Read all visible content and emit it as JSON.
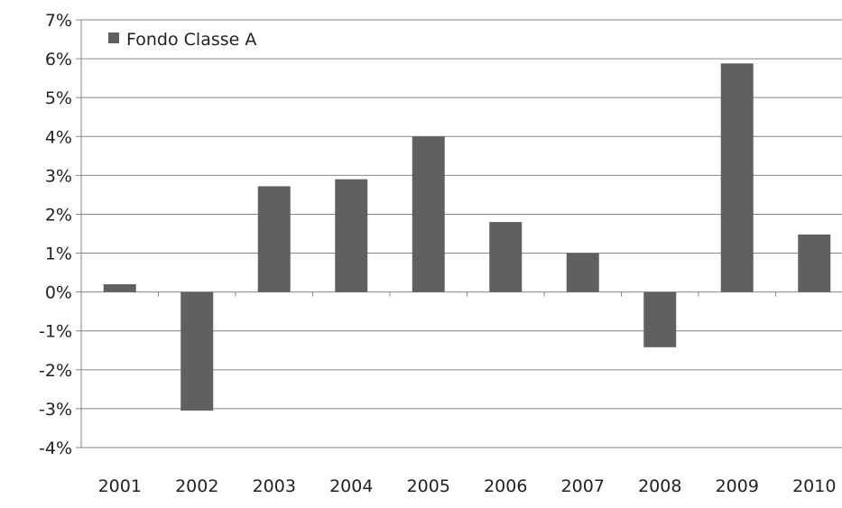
{
  "chart_data": {
    "type": "bar",
    "title": "",
    "xlabel": "",
    "ylabel": "",
    "categories": [
      "2001",
      "2002",
      "2003",
      "2004",
      "2005",
      "2006",
      "2007",
      "2008",
      "2009",
      "2010"
    ],
    "series": [
      {
        "name": "Fondo Classe A",
        "values": [
          0.2,
          -3.05,
          2.72,
          2.9,
          4.0,
          1.8,
          1.0,
          -1.42,
          5.88,
          1.48
        ],
        "color": "#606060"
      }
    ],
    "ylim": [
      -4,
      7
    ],
    "yticks": [
      7,
      6,
      5,
      4,
      3,
      2,
      1,
      0,
      -1,
      -2,
      -3,
      -4
    ],
    "ytick_labels": [
      "7%",
      "6%",
      "5%",
      "4%",
      "3%",
      "2%",
      "1%",
      "0%",
      "-1%",
      "-2%",
      "-3%",
      "-4%"
    ],
    "grid": true,
    "legend_position": "top-left"
  },
  "colors": {
    "bar": "#606060",
    "grid": "#868686",
    "axis": "#868686"
  }
}
